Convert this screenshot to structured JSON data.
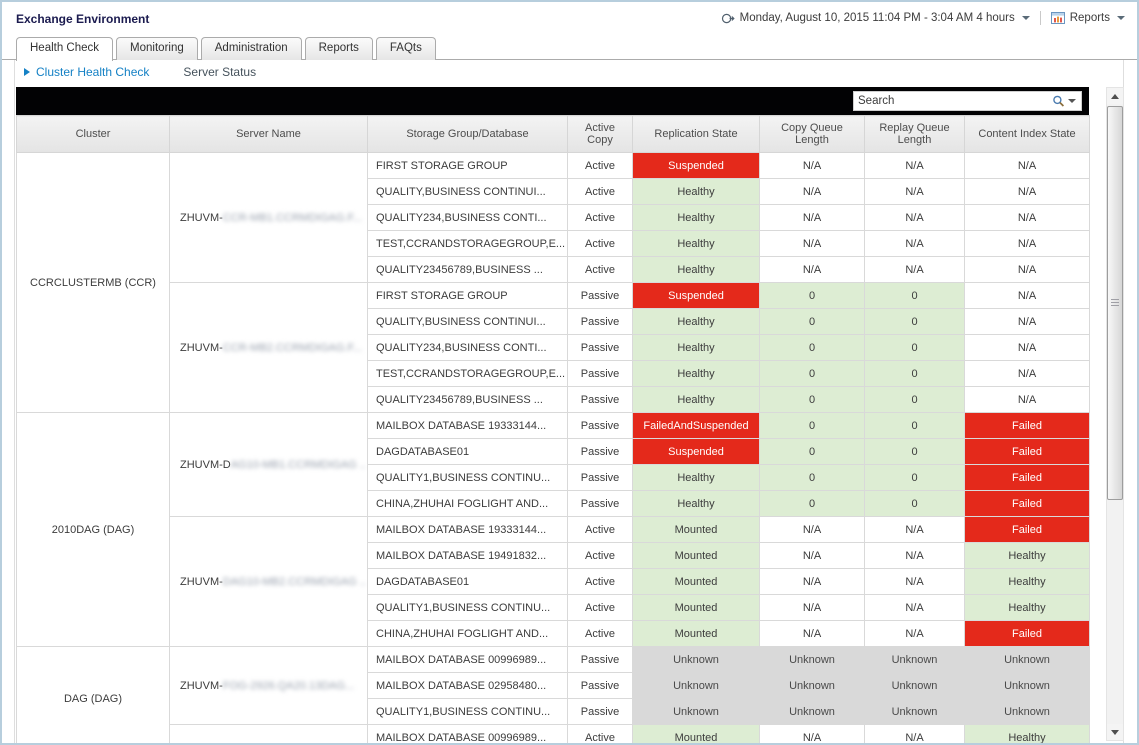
{
  "window": {
    "title": "Exchange Environment"
  },
  "topbar": {
    "time_range_label": "Monday, August 10, 2015 11:04 PM - 3:04 AM 4 hours",
    "reports_label": "Reports"
  },
  "tabs": [
    {
      "label": "Health Check",
      "active": true
    },
    {
      "label": "Monitoring",
      "active": false
    },
    {
      "label": "Administration",
      "active": false
    },
    {
      "label": "Reports",
      "active": false
    },
    {
      "label": "FAQts",
      "active": false
    }
  ],
  "subnav": [
    {
      "label": "Cluster Health Check",
      "active": true
    },
    {
      "label": "Server Status",
      "active": false
    }
  ],
  "search": {
    "placeholder": "Search"
  },
  "theme": {
    "status_red": "#e4291b",
    "status_green": "#ddedd3",
    "status_gray": "#d9d9d9",
    "link_blue": "#1581c5"
  },
  "table": {
    "columns": [
      "Cluster",
      "Server Name",
      "Storage Group/Database",
      "Active Copy",
      "Replication State",
      "Copy Queue Length",
      "Replay Queue Length",
      "Content Index State"
    ],
    "groups": [
      {
        "cluster": "CCRCLUSTERMB (CCR)",
        "servers": [
          {
            "name_visible": "ZHUVM-",
            "name_redacted": "CCR-MB1.CCRMDIGAG.F...",
            "rows": [
              [
                "FIRST STORAGE GROUP",
                "Active",
                "Suspended",
                "N/A",
                "N/A",
                "N/A"
              ],
              [
                "QUALITY,BUSINESS CONTINUI...",
                "Active",
                "Healthy",
                "N/A",
                "N/A",
                "N/A"
              ],
              [
                "QUALITY234,BUSINESS CONTI...",
                "Active",
                "Healthy",
                "N/A",
                "N/A",
                "N/A"
              ],
              [
                "TEST,CCRANDSTORAGEGROUP,E...",
                "Active",
                "Healthy",
                "N/A",
                "N/A",
                "N/A"
              ],
              [
                "QUALITY23456789,BUSINESS ...",
                "Active",
                "Healthy",
                "N/A",
                "N/A",
                "N/A"
              ]
            ]
          },
          {
            "name_visible": "ZHUVM-",
            "name_redacted": "CCR-MB2.CCRMDIGAG.F...",
            "rows": [
              [
                "FIRST STORAGE GROUP",
                "Passive",
                "Suspended",
                "0",
                "0",
                "N/A"
              ],
              [
                "QUALITY,BUSINESS CONTINUI...",
                "Passive",
                "Healthy",
                "0",
                "0",
                "N/A"
              ],
              [
                "QUALITY234,BUSINESS CONTI...",
                "Passive",
                "Healthy",
                "0",
                "0",
                "N/A"
              ],
              [
                "TEST,CCRANDSTORAGEGROUP,E...",
                "Passive",
                "Healthy",
                "0",
                "0",
                "N/A"
              ],
              [
                "QUALITY23456789,BUSINESS ...",
                "Passive",
                "Healthy",
                "0",
                "0",
                "N/A"
              ]
            ]
          }
        ]
      },
      {
        "cluster": "2010DAG (DAG)",
        "servers": [
          {
            "name_visible": "ZHUVM-D",
            "name_redacted": "AG10-MB1.CCRMDIGAG ..",
            "rows": [
              [
                "MAILBOX DATABASE 19333144...",
                "Passive",
                "FailedAndSuspended",
                "0",
                "0",
                "Failed"
              ],
              [
                "DAGDATABASE01",
                "Passive",
                "Suspended",
                "0",
                "0",
                "Failed"
              ],
              [
                "QUALITY1,BUSINESS CONTINU...",
                "Passive",
                "Healthy",
                "0",
                "0",
                "Failed"
              ],
              [
                "CHINA,ZHUHAI FOGLIGHT AND...",
                "Passive",
                "Healthy",
                "0",
                "0",
                "Failed"
              ]
            ]
          },
          {
            "name_visible": "ZHUVM-",
            "name_redacted": "DAG10-MB2.CCRMDIGAG ..",
            "rows": [
              [
                "MAILBOX DATABASE 19333144...",
                "Active",
                "Mounted",
                "N/A",
                "N/A",
                "Failed"
              ],
              [
                "MAILBOX DATABASE 19491832...",
                "Active",
                "Mounted",
                "N/A",
                "N/A",
                "Healthy"
              ],
              [
                "DAGDATABASE01",
                "Active",
                "Mounted",
                "N/A",
                "N/A",
                "Healthy"
              ],
              [
                "QUALITY1,BUSINESS CONTINU...",
                "Active",
                "Mounted",
                "N/A",
                "N/A",
                "Healthy"
              ],
              [
                "CHINA,ZHUHAI FOGLIGHT AND...",
                "Active",
                "Mounted",
                "N/A",
                "N/A",
                "Failed"
              ]
            ]
          }
        ]
      },
      {
        "cluster": "DAG (DAG)",
        "servers": [
          {
            "name_visible": "ZHUVM-",
            "name_redacted": "FOG-2926.QA20.13DAG...",
            "rows": [
              [
                "MAILBOX DATABASE 00996989...",
                "Passive",
                "Unknown",
                "Unknown",
                "Unknown",
                "Unknown"
              ],
              [
                "MAILBOX DATABASE 02958480...",
                "Passive",
                "Unknown",
                "Unknown",
                "Unknown",
                "Unknown"
              ],
              [
                "QUALITY1,BUSINESS CONTINU...",
                "Passive",
                "Unknown",
                "Unknown",
                "Unknown",
                "Unknown"
              ]
            ]
          },
          {
            "name_visible": "",
            "name_redacted": "",
            "rows": [
              [
                "MAILBOX DATABASE 00996989...",
                "Active",
                "Mounted",
                "N/A",
                "N/A",
                "Healthy"
              ]
            ]
          }
        ]
      }
    ]
  }
}
